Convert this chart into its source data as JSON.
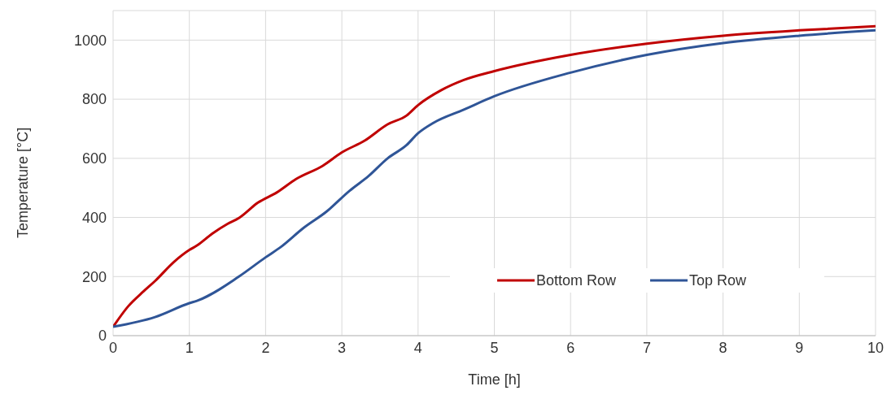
{
  "chart_data": {
    "type": "line",
    "xlabel": "Time [h]",
    "ylabel": "Temperature [°C]",
    "xlim": [
      0,
      10
    ],
    "xticks": [
      0,
      1,
      2,
      3,
      4,
      5,
      6,
      7,
      8,
      9,
      10
    ],
    "ylim": [
      0,
      1100
    ],
    "yticks": [
      0,
      200,
      400,
      600,
      800,
      1000
    ],
    "grid": true,
    "legend": "bottom right",
    "marker": "none",
    "line_style": "solid",
    "series": [
      {
        "name": "Bottom Row",
        "color": "#c00000",
        "x": [
          0,
          0.2,
          0.4,
          0.55,
          0.8,
          1.0,
          1.1,
          1.3,
          1.5,
          1.65,
          1.9,
          2.15,
          2.4,
          2.75,
          3.0,
          3.3,
          3.6,
          3.85,
          4.0,
          4.3,
          4.6,
          5.0,
          6.0,
          7.0,
          8.0,
          9.0,
          10
        ],
        "values": [
          30,
          100,
          150,
          185,
          250,
          290,
          305,
          345,
          378,
          398,
          450,
          485,
          530,
          575,
          620,
          660,
          715,
          745,
          780,
          830,
          865,
          895,
          950,
          988,
          1015,
          1033,
          1047
        ]
      },
      {
        "name": "Top Row",
        "color": "#2f5597",
        "x": [
          0,
          0.55,
          1.0,
          1.1,
          1.65,
          2.0,
          2.2,
          2.5,
          2.8,
          3.1,
          3.35,
          3.6,
          3.85,
          4.0,
          4.2,
          4.6,
          5.0,
          6.0,
          7.0,
          8.0,
          9.0,
          10
        ],
        "values": [
          30,
          63,
          110,
          118,
          200,
          265,
          300,
          365,
          420,
          490,
          540,
          600,
          645,
          685,
          720,
          765,
          810,
          890,
          950,
          990,
          1015,
          1033
        ]
      }
    ]
  }
}
